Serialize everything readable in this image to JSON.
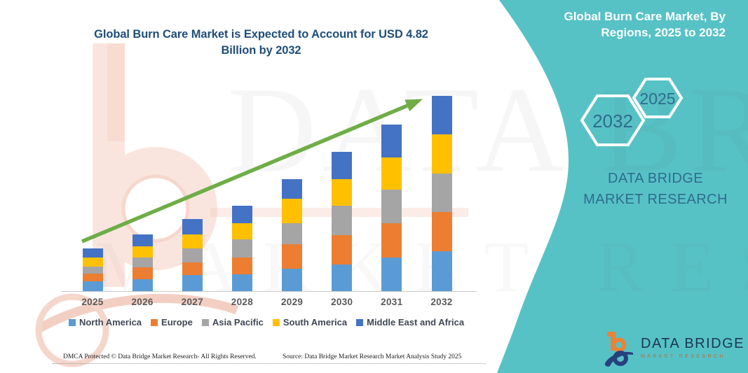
{
  "watermark": {
    "line1": "DATA BRIDGE",
    "line2": "MARKET RESEARCH"
  },
  "chart": {
    "title": "Global Burn Care Market is Expected to Account for USD 4.82 Billion by 2032"
  },
  "chart_data": {
    "type": "bar",
    "subtype": "stacked",
    "title": "Global Burn Care Market is Expected to Account for USD 4.82 Billion by 2032",
    "unit": "USD Billion",
    "categories": [
      "2025",
      "2026",
      "2027",
      "2028",
      "2029",
      "2030",
      "2031",
      "2032"
    ],
    "series": [
      {
        "name": "North America",
        "color": "#5B9BD5",
        "values": [
          0.24,
          0.29,
          0.4,
          0.41,
          0.55,
          0.66,
          0.83,
          0.98
        ]
      },
      {
        "name": "Europe",
        "color": "#ED7D31",
        "values": [
          0.19,
          0.29,
          0.31,
          0.41,
          0.6,
          0.73,
          0.85,
          0.97
        ]
      },
      {
        "name": "Asia Pacific",
        "color": "#A5A5A5",
        "values": [
          0.17,
          0.24,
          0.35,
          0.45,
          0.52,
          0.73,
          0.83,
          0.95
        ]
      },
      {
        "name": "South America",
        "color": "#FFC000",
        "values": [
          0.22,
          0.28,
          0.35,
          0.4,
          0.6,
          0.66,
          0.79,
          0.97
        ]
      },
      {
        "name": "Middle East and Africa",
        "color": "#4472C4",
        "values": [
          0.22,
          0.29,
          0.38,
          0.43,
          0.48,
          0.67,
          0.81,
          0.95
        ]
      }
    ],
    "totals_estimated": [
      1.04,
      1.39,
      1.79,
      2.1,
      2.75,
      3.45,
      4.11,
      4.82
    ],
    "xlabel": "",
    "ylabel": "",
    "ylim": [
      0,
      5
    ],
    "grid": false,
    "legend_position": "bottom",
    "annotations": [
      "upward green trend arrow across bar tops"
    ],
    "accent_colors": {
      "trend_arrow": "#6FAD47",
      "axis_line": "#C9C9C9"
    }
  },
  "side_panel": {
    "title": "Global Burn Care Market, By Regions, 2025 to 2032",
    "hex1": "2032",
    "hex2": "2025",
    "brand": "DATA BRIDGE MARKET RESEARCH",
    "panel_color": "#57C2C6"
  },
  "logo": {
    "name": "DATA BRIDGE",
    "subtitle": "MARKET RESEARCH"
  },
  "footer": {
    "left": "DMCA Protected © Data Bridge Market Research-  All Rights Reserved.",
    "right": "Source: Data Bridge Market Research  Market Analysis Study 2025"
  }
}
